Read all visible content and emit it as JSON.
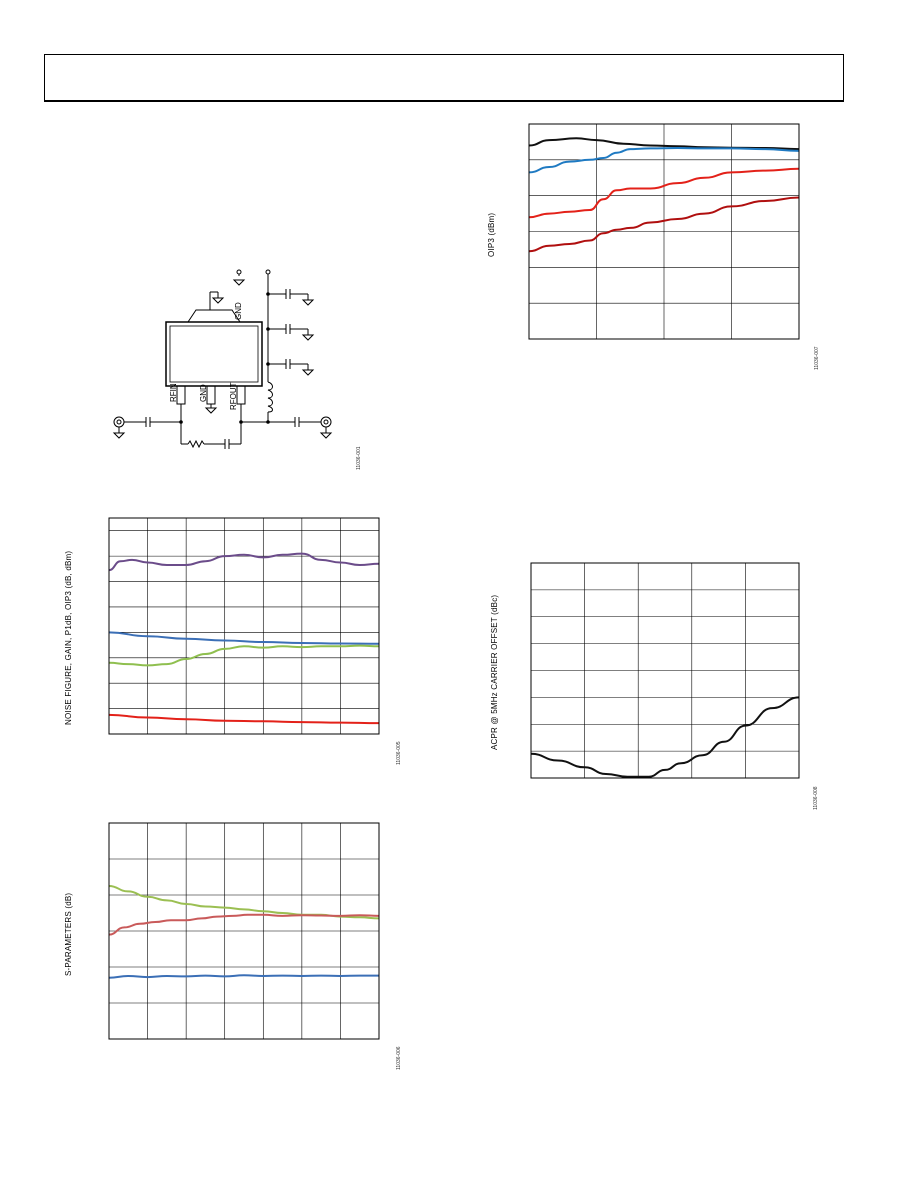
{
  "page": {
    "header": ""
  },
  "figures": [
    {
      "id": "schematic",
      "fig_id": "11036-001",
      "pins": {
        "rfin": "RFIN",
        "gnd_bottom": "GND",
        "rfout": "RFOUT",
        "gnd_tab": "GND"
      }
    },
    {
      "id": "oip3",
      "fig_id": "11036-007",
      "ylabel": "OIP3 (dBm)"
    },
    {
      "id": "nf-gain",
      "fig_id": "11036-005",
      "ylabel": "NOISE FIGURE, GAIN, P1dB, OIP3 (dB, dBm)"
    },
    {
      "id": "acpr",
      "fig_id": "11036-008",
      "ylabel": "ACPR @ 5MHz CARRIER OFFSET (dBc)"
    },
    {
      "id": "sparams",
      "fig_id": "11036-006",
      "ylabel": "S-PARAMETERS (dB)"
    }
  ],
  "chart_data": [
    {
      "type": "line",
      "title": "",
      "ylabel": "OIP3 (dBm)",
      "xlabel": "",
      "xlim": [
        0,
        4
      ],
      "ylim": [
        0,
        6
      ],
      "x_divisions": 4,
      "y_divisions": 6,
      "series": [
        {
          "color": "#111111",
          "x": [
            0,
            0.3,
            0.7,
            1.0,
            1.4,
            1.8,
            2.2,
            2.6,
            3.0,
            3.5,
            4.0
          ],
          "y": [
            5.4,
            5.55,
            5.6,
            5.55,
            5.45,
            5.4,
            5.38,
            5.35,
            5.34,
            5.33,
            5.3
          ]
        },
        {
          "color": "#1f7ac2",
          "x": [
            0,
            0.3,
            0.6,
            0.9,
            1.1,
            1.3,
            1.5,
            1.8,
            2.2,
            2.6,
            3.0,
            3.5,
            4.0
          ],
          "y": [
            4.65,
            4.8,
            4.95,
            5.0,
            5.05,
            5.2,
            5.3,
            5.32,
            5.33,
            5.32,
            5.32,
            5.3,
            5.25
          ]
        },
        {
          "color": "#e32119",
          "x": [
            0,
            0.3,
            0.6,
            0.9,
            1.1,
            1.3,
            1.5,
            1.8,
            2.2,
            2.6,
            3.0,
            3.5,
            4.0
          ],
          "y": [
            3.4,
            3.5,
            3.55,
            3.6,
            3.9,
            4.15,
            4.2,
            4.2,
            4.35,
            4.5,
            4.65,
            4.7,
            4.75
          ]
        },
        {
          "color": "#b00f0f",
          "x": [
            0,
            0.3,
            0.6,
            0.9,
            1.1,
            1.3,
            1.5,
            1.8,
            2.2,
            2.6,
            3.0,
            3.5,
            4.0
          ],
          "y": [
            2.45,
            2.6,
            2.65,
            2.75,
            2.95,
            3.05,
            3.1,
            3.25,
            3.35,
            3.5,
            3.7,
            3.85,
            3.95
          ]
        }
      ]
    },
    {
      "type": "line",
      "title": "",
      "ylabel": "NOISE FIGURE, GAIN, P1dB, OIP3 (dB, dBm)",
      "xlabel": "",
      "xlim": [
        0,
        7
      ],
      "ylim": [
        0,
        8.5
      ],
      "x_divisions": 7,
      "y_divisions": 8.5,
      "series": [
        {
          "color": "#6b4c8a",
          "x": [
            0,
            0.3,
            0.6,
            1.0,
            1.5,
            2.0,
            2.5,
            3.0,
            3.5,
            4.0,
            4.5,
            5.0,
            5.5,
            6.0,
            6.5,
            7.0
          ],
          "y": [
            6.45,
            6.8,
            6.85,
            6.75,
            6.65,
            6.65,
            6.8,
            7.0,
            7.05,
            6.95,
            7.05,
            7.1,
            6.85,
            6.75,
            6.65,
            6.7
          ]
        },
        {
          "color": "#3b6fb6",
          "x": [
            0,
            1,
            2,
            3,
            4,
            5,
            6,
            7
          ],
          "y": [
            4.0,
            3.85,
            3.75,
            3.68,
            3.62,
            3.58,
            3.56,
            3.55
          ]
        },
        {
          "color": "#8fbf4f",
          "x": [
            0,
            0.5,
            1.0,
            1.5,
            2.0,
            2.5,
            3.0,
            3.5,
            4.0,
            4.5,
            5.0,
            5.5,
            6.0,
            6.5,
            7.0
          ],
          "y": [
            2.8,
            2.75,
            2.7,
            2.75,
            2.95,
            3.15,
            3.35,
            3.45,
            3.4,
            3.45,
            3.42,
            3.45,
            3.45,
            3.48,
            3.45
          ]
        },
        {
          "color": "#e32119",
          "x": [
            0,
            1,
            2,
            3,
            4,
            5,
            6,
            7
          ],
          "y": [
            0.75,
            0.65,
            0.58,
            0.52,
            0.5,
            0.47,
            0.45,
            0.43
          ]
        }
      ]
    },
    {
      "type": "line",
      "title": "",
      "ylabel": "ACPR @ 5MHz CARRIER OFFSET (dBc)",
      "xlabel": "",
      "xlim": [
        0,
        5
      ],
      "ylim": [
        0,
        8
      ],
      "x_divisions": 5,
      "y_divisions": 8,
      "series": [
        {
          "color": "#111111",
          "x": [
            0,
            0.5,
            1.0,
            1.4,
            1.8,
            2.2,
            2.5,
            2.8,
            3.2,
            3.6,
            4.0,
            4.5,
            5.0
          ],
          "y": [
            0.9,
            0.65,
            0.4,
            0.15,
            0.05,
            0.05,
            0.3,
            0.55,
            0.85,
            1.35,
            1.95,
            2.6,
            3.0
          ]
        }
      ]
    },
    {
      "type": "line",
      "title": "",
      "ylabel": "S-PARAMETERS (dB)",
      "xlabel": "",
      "xlim": [
        0,
        7
      ],
      "ylim": [
        0,
        6
      ],
      "x_divisions": 7,
      "y_divisions": 6,
      "series": [
        {
          "color": "#9bbf52",
          "x": [
            0,
            0.5,
            1.0,
            1.5,
            2.0,
            2.5,
            3.0,
            3.5,
            4.0,
            4.5,
            5.0,
            5.5,
            6.0,
            6.5,
            7.0
          ],
          "y": [
            4.25,
            4.1,
            3.95,
            3.85,
            3.75,
            3.68,
            3.65,
            3.6,
            3.55,
            3.5,
            3.45,
            3.45,
            3.4,
            3.38,
            3.35
          ]
        },
        {
          "color": "#c95a5a",
          "x": [
            0,
            0.4,
            0.8,
            1.2,
            1.6,
            2.0,
            2.4,
            2.8,
            3.2,
            3.6,
            4.0,
            4.5,
            5.0,
            5.5,
            6.0,
            6.5,
            7.0
          ],
          "y": [
            2.9,
            3.1,
            3.2,
            3.25,
            3.3,
            3.3,
            3.35,
            3.4,
            3.42,
            3.45,
            3.45,
            3.42,
            3.44,
            3.43,
            3.42,
            3.44,
            3.42
          ]
        },
        {
          "color": "#3b6fb6",
          "x": [
            0,
            0.5,
            1.0,
            1.5,
            2.0,
            2.5,
            3.0,
            3.5,
            4.0,
            4.5,
            5.0,
            5.5,
            6.0,
            6.5,
            7.0
          ],
          "y": [
            1.7,
            1.75,
            1.72,
            1.75,
            1.74,
            1.76,
            1.74,
            1.77,
            1.75,
            1.76,
            1.75,
            1.76,
            1.75,
            1.76,
            1.76
          ]
        }
      ]
    }
  ]
}
